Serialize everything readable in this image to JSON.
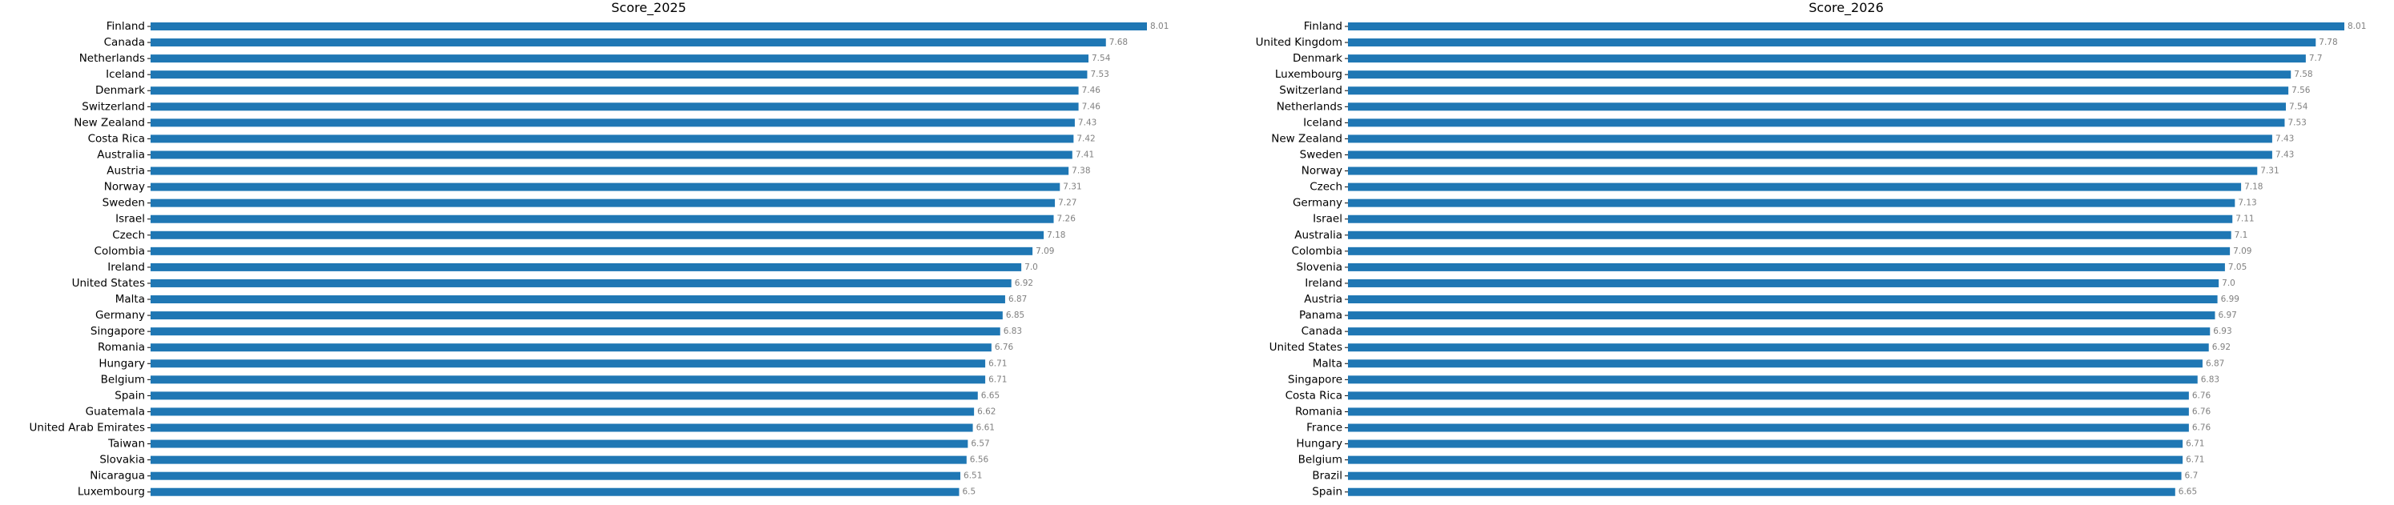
{
  "chart_data": [
    {
      "type": "bar",
      "orientation": "horizontal",
      "title": "Score_2025",
      "xlabel": "",
      "ylabel": "",
      "bar_color": "#1f77b4",
      "value_label_color": "#808080",
      "xlim": [
        0,
        8.01
      ],
      "categories": [
        "Finland",
        "Canada",
        "Netherlands",
        "Iceland",
        "Denmark",
        "Switzerland",
        "New Zealand",
        "Costa Rica",
        "Australia",
        "Austria",
        "Norway",
        "Sweden",
        "Israel",
        "Czech",
        "Colombia",
        "Ireland",
        "United States",
        "Malta",
        "Germany",
        "Singapore",
        "Romania",
        "Hungary",
        "Belgium",
        "Spain",
        "Guatemala",
        "United Arab Emirates",
        "Taiwan",
        "Slovakia",
        "Nicaragua",
        "Luxembourg"
      ],
      "values": [
        8.01,
        7.68,
        7.54,
        7.53,
        7.46,
        7.46,
        7.43,
        7.42,
        7.41,
        7.38,
        7.31,
        7.27,
        7.26,
        7.18,
        7.09,
        7.0,
        6.92,
        6.87,
        6.85,
        6.83,
        6.76,
        6.71,
        6.71,
        6.65,
        6.62,
        6.61,
        6.57,
        6.56,
        6.51,
        6.5
      ],
      "value_labels": [
        "8.01",
        "7.68",
        "7.54",
        "7.53",
        "7.46",
        "7.46",
        "7.43",
        "7.42",
        "7.41",
        "7.38",
        "7.31",
        "7.27",
        "7.26",
        "7.18",
        "7.09",
        "7.0",
        "6.92",
        "6.87",
        "6.85",
        "6.83",
        "6.76",
        "6.71",
        "6.71",
        "6.65",
        "6.62",
        "6.61",
        "6.57",
        "6.56",
        "6.51",
        "6.5"
      ]
    },
    {
      "type": "bar",
      "orientation": "horizontal",
      "title": "Score_2026",
      "xlabel": "",
      "ylabel": "",
      "bar_color": "#1f77b4",
      "value_label_color": "#808080",
      "xlim": [
        0,
        8.01
      ],
      "categories": [
        "Finland",
        "United Kingdom",
        "Denmark",
        "Luxembourg",
        "Switzerland",
        "Netherlands",
        "Iceland",
        "New Zealand",
        "Sweden",
        "Norway",
        "Czech",
        "Germany",
        "Israel",
        "Australia",
        "Colombia",
        "Slovenia",
        "Ireland",
        "Austria",
        "Panama",
        "Canada",
        "United States",
        "Malta",
        "Singapore",
        "Costa Rica",
        "Romania",
        "France",
        "Hungary",
        "Belgium",
        "Brazil",
        "Spain"
      ],
      "values": [
        8.01,
        7.78,
        7.7,
        7.58,
        7.56,
        7.54,
        7.53,
        7.43,
        7.43,
        7.31,
        7.18,
        7.13,
        7.11,
        7.1,
        7.09,
        7.05,
        7.0,
        6.99,
        6.97,
        6.93,
        6.92,
        6.87,
        6.83,
        6.76,
        6.76,
        6.76,
        6.71,
        6.71,
        6.7,
        6.65
      ],
      "value_labels": [
        "8.01",
        "7.78",
        "7.7",
        "7.58",
        "7.56",
        "7.54",
        "7.53",
        "7.43",
        "7.43",
        "7.31",
        "7.18",
        "7.13",
        "7.11",
        "7.1",
        "7.09",
        "7.05",
        "7.0",
        "6.99",
        "6.97",
        "6.93",
        "6.92",
        "6.87",
        "6.83",
        "6.76",
        "6.76",
        "6.76",
        "6.71",
        "6.71",
        "6.7",
        "6.65"
      ]
    }
  ]
}
